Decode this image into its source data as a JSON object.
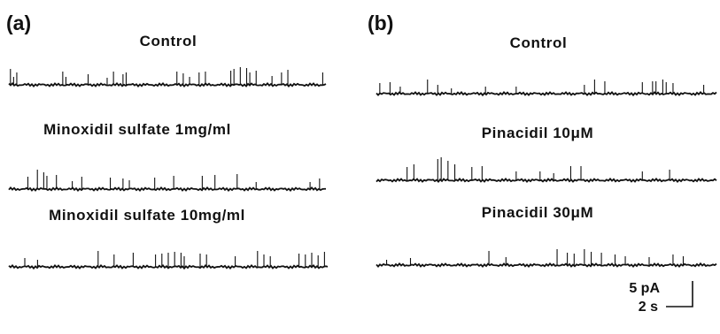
{
  "figure": {
    "panels": [
      {
        "label": "(a)",
        "traces": [
          {
            "title": "Control",
            "events": [
              0.005,
              0.015,
              0.025,
              0.17,
              0.18,
              0.25,
              0.31,
              0.33,
              0.36,
              0.37,
              0.53,
              0.55,
              0.57,
              0.6,
              0.62,
              0.7,
              0.71,
              0.73,
              0.75,
              0.76,
              0.78,
              0.83,
              0.86,
              0.88,
              0.99
            ],
            "heights": [
              18,
              9,
              14,
              15,
              9,
              12,
              8,
              15,
              12,
              14,
              15,
              13,
              9,
              14,
              15,
              16,
              18,
              20,
              19,
              14,
              16,
              10,
              14,
              17,
              14
            ]
          },
          {
            "title": "Minoxidil sulfate 1mg/ml",
            "events": [
              0.06,
              0.09,
              0.11,
              0.12,
              0.15,
              0.2,
              0.23,
              0.32,
              0.36,
              0.38,
              0.46,
              0.52,
              0.61,
              0.65,
              0.72,
              0.78,
              0.95,
              0.98
            ],
            "heights": [
              14,
              22,
              19,
              15,
              16,
              9,
              14,
              13,
              12,
              10,
              13,
              15,
              15,
              16,
              17,
              8,
              8,
              12
            ]
          },
          {
            "title": "Minoxidil sulfate 10mg/ml",
            "events": [
              0.05,
              0.09,
              0.28,
              0.33,
              0.39,
              0.46,
              0.48,
              0.5,
              0.52,
              0.54,
              0.55,
              0.6,
              0.62,
              0.71,
              0.78,
              0.8,
              0.82,
              0.91,
              0.93,
              0.95,
              0.97,
              0.99
            ],
            "heights": [
              10,
              8,
              18,
              14,
              16,
              14,
              15,
              16,
              17,
              16,
              12,
              15,
              14,
              12,
              18,
              14,
              12,
              15,
              14,
              16,
              13,
              17
            ]
          }
        ]
      },
      {
        "label": "(b)",
        "traces": [
          {
            "title": "Control",
            "events": [
              0.01,
              0.04,
              0.07,
              0.15,
              0.18,
              0.22,
              0.32,
              0.41,
              0.61,
              0.64,
              0.67,
              0.78,
              0.81,
              0.82,
              0.84,
              0.85,
              0.87,
              0.96
            ],
            "heights": [
              12,
              13,
              8,
              16,
              10,
              6,
              8,
              8,
              10,
              16,
              14,
              13,
              14,
              14,
              16,
              13,
              12,
              10
            ]
          },
          {
            "title": "Pinacidil 10μM",
            "events": [
              0.09,
              0.11,
              0.18,
              0.19,
              0.21,
              0.23,
              0.28,
              0.31,
              0.41,
              0.48,
              0.52,
              0.57,
              0.6,
              0.78,
              0.86
            ],
            "heights": [
              15,
              18,
              24,
              26,
              22,
              18,
              15,
              16,
              10,
              10,
              8,
              16,
              16,
              10,
              12
            ]
          },
          {
            "title": "Pinacidil  30μM",
            "events": [
              0.03,
              0.1,
              0.33,
              0.38,
              0.53,
              0.56,
              0.58,
              0.61,
              0.63,
              0.66,
              0.7,
              0.73,
              0.8,
              0.87,
              0.9
            ],
            "heights": [
              6,
              8,
              16,
              9,
              18,
              14,
              13,
              18,
              15,
              14,
              12,
              10,
              9,
              12,
              10
            ]
          }
        ]
      }
    ],
    "scale_bar": {
      "current_label": "5 pA",
      "time_label": "2 s"
    }
  }
}
